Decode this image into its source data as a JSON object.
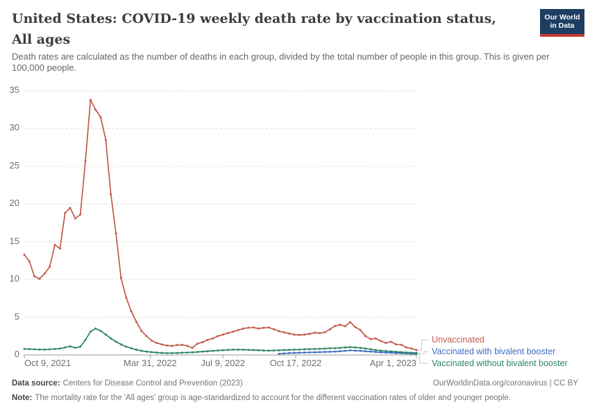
{
  "header": {
    "title": "United States: COVID-19 weekly death rate by vaccination status, All ages",
    "subtitle": "Death rates are calculated as the number of deaths in each group, divided by the total number of people in this group. This is given per 100,000 people."
  },
  "logo": {
    "line1": "Our World",
    "line2": "in Data",
    "navy": "#1d3d63",
    "red": "#c53a30"
  },
  "footer": {
    "datasource_label": "Data source:",
    "datasource": "Centers for Disease Control and Prevention (2023)",
    "rights": "OurWorldinData.org/coronavirus | CC BY",
    "note_label": "Note:",
    "note": "The mortality rate for the 'All ages' group is age-standardized to account for the different vaccination rates of older and younger people."
  },
  "chart_data": {
    "type": "line",
    "unit": "weekly deaths per 100,000 people",
    "ylim": [
      0,
      35
    ],
    "y_ticks": [
      0,
      5,
      10,
      15,
      20,
      25,
      30,
      35
    ],
    "grid": "horizontal-dashed",
    "legend_position": "right-of-line-ends",
    "x_ticks": [
      {
        "label": "Oct 9, 2021",
        "t": 0
      },
      {
        "label": "Mar 31, 2022",
        "t": 0.321
      },
      {
        "label": "Jul 9, 2022",
        "t": 0.5065
      },
      {
        "label": "Oct 17, 2022",
        "t": 0.692
      },
      {
        "label": "Apr 1, 2023",
        "t": 1
      }
    ],
    "x_dates": [
      "2021-10-09",
      "2021-10-16",
      "2021-10-23",
      "2021-10-30",
      "2021-11-06",
      "2021-11-13",
      "2021-11-20",
      "2021-11-27",
      "2021-12-04",
      "2021-12-11",
      "2021-12-18",
      "2021-12-25",
      "2022-01-01",
      "2022-01-08",
      "2022-01-15",
      "2022-01-22",
      "2022-01-29",
      "2022-02-05",
      "2022-02-12",
      "2022-02-19",
      "2022-02-26",
      "2022-03-05",
      "2022-03-12",
      "2022-03-19",
      "2022-03-26",
      "2022-04-02",
      "2022-04-09",
      "2022-04-16",
      "2022-04-23",
      "2022-04-30",
      "2022-05-07",
      "2022-05-14",
      "2022-05-21",
      "2022-05-28",
      "2022-06-04",
      "2022-06-11",
      "2022-06-18",
      "2022-06-25",
      "2022-07-02",
      "2022-07-09",
      "2022-07-16",
      "2022-07-23",
      "2022-07-30",
      "2022-08-06",
      "2022-08-13",
      "2022-08-20",
      "2022-08-27",
      "2022-09-03",
      "2022-09-10",
      "2022-09-17",
      "2022-09-24",
      "2022-10-01",
      "2022-10-08",
      "2022-10-15",
      "2022-10-22",
      "2022-10-29",
      "2022-11-05",
      "2022-11-12",
      "2022-11-19",
      "2022-11-26",
      "2022-12-03",
      "2022-12-10",
      "2022-12-17",
      "2022-12-24",
      "2022-12-31",
      "2023-01-07",
      "2023-01-14",
      "2023-01-21",
      "2023-01-28",
      "2023-02-04",
      "2023-02-11",
      "2023-02-18",
      "2023-02-25",
      "2023-03-04",
      "2023-03-11",
      "2023-03-18",
      "2023-03-25",
      "2023-04-01"
    ],
    "series": [
      {
        "name": "Unvaccinated",
        "color": "#c15a4b",
        "values": [
          13.3,
          12.4,
          10.4,
          10.1,
          10.8,
          11.7,
          14.6,
          14.1,
          18.8,
          19.5,
          18.1,
          18.6,
          25.7,
          33.8,
          32.5,
          31.5,
          28.5,
          21.3,
          16.1,
          10.2,
          7.6,
          5.8,
          4.4,
          3.2,
          2.5,
          1.9,
          1.6,
          1.4,
          1.25,
          1.2,
          1.3,
          1.35,
          1.2,
          0.95,
          1.5,
          1.7,
          2.0,
          2.2,
          2.5,
          2.7,
          2.9,
          3.1,
          3.3,
          3.5,
          3.6,
          3.65,
          3.5,
          3.6,
          3.65,
          3.4,
          3.15,
          3.0,
          2.85,
          2.7,
          2.65,
          2.7,
          2.8,
          2.95,
          2.9,
          3.0,
          3.4,
          3.85,
          4.0,
          3.8,
          4.35,
          3.7,
          3.3,
          2.5,
          2.1,
          2.2,
          1.85,
          1.6,
          1.75,
          1.4,
          1.35,
          1.0,
          0.85,
          0.65
        ]
      },
      {
        "name": "Vaccinated with bivalent booster",
        "color": "#3c6cc4",
        "values": [
          null,
          null,
          null,
          null,
          null,
          null,
          null,
          null,
          null,
          null,
          null,
          null,
          null,
          null,
          null,
          null,
          null,
          null,
          null,
          null,
          null,
          null,
          null,
          null,
          null,
          null,
          null,
          null,
          null,
          null,
          null,
          null,
          null,
          null,
          null,
          null,
          null,
          null,
          null,
          null,
          null,
          null,
          null,
          null,
          null,
          null,
          null,
          null,
          null,
          null,
          0.15,
          0.2,
          0.25,
          0.28,
          0.3,
          0.32,
          0.34,
          0.36,
          0.38,
          0.4,
          0.42,
          0.45,
          0.5,
          0.55,
          0.62,
          0.58,
          0.55,
          0.5,
          0.45,
          0.4,
          0.36,
          0.32,
          0.29,
          0.26,
          0.23,
          0.2,
          0.17,
          0.15
        ]
      },
      {
        "name": "Vaccinated without bivalent booster",
        "color": "#2c8465",
        "values": [
          0.8,
          0.78,
          0.75,
          0.72,
          0.72,
          0.75,
          0.8,
          0.85,
          1.0,
          1.15,
          0.95,
          1.1,
          2.0,
          3.1,
          3.5,
          3.2,
          2.7,
          2.2,
          1.75,
          1.4,
          1.1,
          0.9,
          0.7,
          0.55,
          0.45,
          0.38,
          0.32,
          0.28,
          0.25,
          0.25,
          0.27,
          0.3,
          0.32,
          0.35,
          0.4,
          0.45,
          0.5,
          0.55,
          0.6,
          0.63,
          0.67,
          0.7,
          0.72,
          0.7,
          0.68,
          0.65,
          0.63,
          0.6,
          0.58,
          0.6,
          0.62,
          0.65,
          0.68,
          0.7,
          0.72,
          0.75,
          0.78,
          0.8,
          0.82,
          0.85,
          0.88,
          0.9,
          0.95,
          1.0,
          1.05,
          1.0,
          0.95,
          0.85,
          0.75,
          0.65,
          0.58,
          0.52,
          0.47,
          0.42,
          0.38,
          0.33,
          0.3,
          0.27
        ]
      }
    ]
  }
}
